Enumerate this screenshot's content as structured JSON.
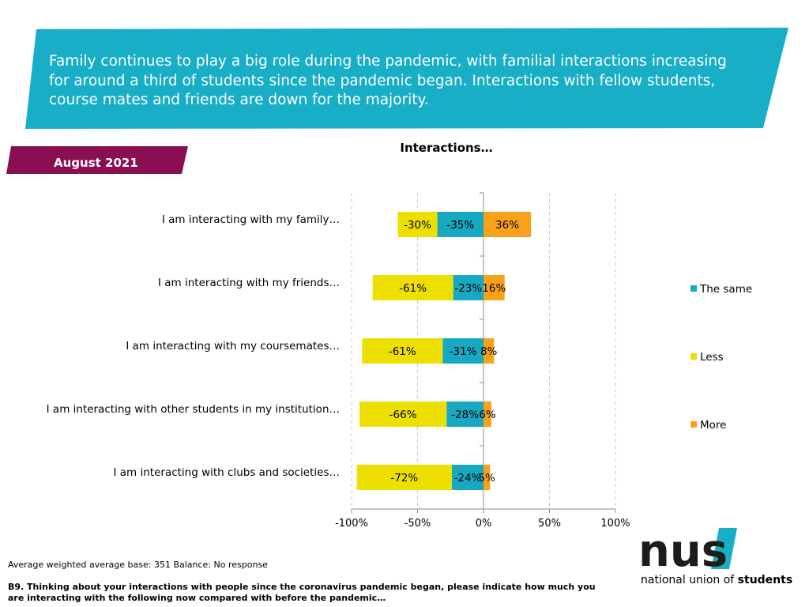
{
  "banner": {
    "text": "Family continues to play a big role during the pandemic, with familial interactions increasing for around a third of students since the pandemic began. Interactions with fellow students, course mates and friends are down for the majority.",
    "color": "#17aec6"
  },
  "date_tab": {
    "label": "August 2021",
    "color": "#8a0f52"
  },
  "chart_data": {
    "type": "bar",
    "orientation": "horizontal",
    "stacked": "diverging",
    "title": "Interactions…",
    "categories": [
      "I am interacting with my family…",
      "I am interacting with my friends…",
      "I am interacting with my coursemates…",
      "I am interacting with other students in my institution…",
      "I am interacting with clubs and societies…"
    ],
    "series": [
      {
        "name": "The same",
        "color": "#17a9c2",
        "values": [
          -35,
          -23,
          -31,
          -28,
          -24
        ],
        "labels": [
          "-35%",
          "-23%",
          "-31%",
          "-28%",
          "-24%"
        ]
      },
      {
        "name": "Less",
        "color": "#ede000",
        "values": [
          -30,
          -61,
          -61,
          -66,
          -72
        ],
        "labels": [
          "-30%",
          "-61%",
          "-61%",
          "-66%",
          "-72%"
        ]
      },
      {
        "name": "More",
        "color": "#f9a11b",
        "values": [
          36,
          16,
          8,
          6,
          5
        ],
        "labels": [
          "36%",
          "16%",
          "8%",
          "6%",
          "5%"
        ]
      }
    ],
    "xlim": [
      -100,
      100
    ],
    "xticks": [
      -100,
      -50,
      0,
      50,
      100
    ],
    "xtick_labels": [
      "-100%",
      "-50%",
      "0%",
      "50%",
      "100%"
    ],
    "grid": "vertical dashed",
    "legend": "right"
  },
  "footer": {
    "base_note": "Average weighted average base: 351 Balance: No response",
    "question": "B9. Thinking about your interactions with people since the coronavirus pandemic began, please indicate how much you are interacting  with the following now compared with before the pandemic…"
  },
  "logo": {
    "mark": "nus",
    "subtitle_plain": "national union of ",
    "subtitle_bold": "students",
    "accent": "#17aec6"
  }
}
